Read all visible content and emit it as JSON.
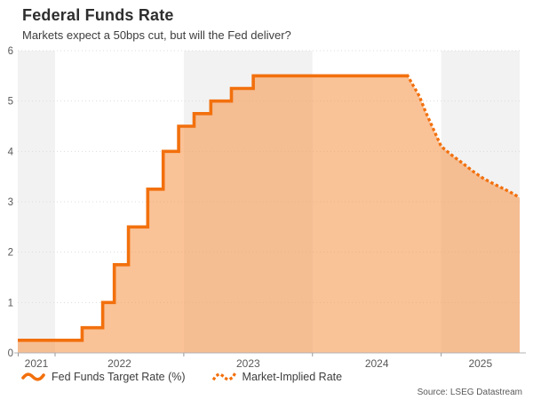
{
  "header": {
    "title": "Federal Funds Rate",
    "subtitle": "Markets expect a 50bps cut, but will the Fed deliver?"
  },
  "source": "Source: LSEG Datastream",
  "legend": [
    {
      "label": "Fed Funds Target Rate (%)",
      "style": "solid"
    },
    {
      "label": "Market-Implied Rate",
      "style": "dotted"
    }
  ],
  "colors": {
    "line": "#f2700d",
    "fill": "rgba(247,153,82,0.6)",
    "band_gray": "#f2f2f2",
    "band_white": "#ffffff",
    "gridline": "#dcdcdc",
    "axis": "#b3b3b3",
    "tick": "#999999",
    "tick_label": "#595959"
  },
  "chart_data": {
    "type": "area",
    "title": "Federal Funds Rate",
    "subtitle": "Markets expect a 50bps cut, but will the Fed deliver?",
    "xlabel": "",
    "ylabel": "",
    "x_domain": [
      2021.71,
      2025.61
    ],
    "ylim": [
      0,
      6
    ],
    "y_ticks": [
      0,
      1,
      2,
      3,
      4,
      5,
      6
    ],
    "x_years": [
      2021,
      2022,
      2023,
      2024,
      2025
    ],
    "grid": "horizontal-dotted",
    "legend_position": "bottom-left",
    "series": [
      {
        "name": "Fed Funds Target Rate (%)",
        "style": "step-solid",
        "points": [
          [
            2021.71,
            0.25
          ],
          [
            2022.21,
            0.5
          ],
          [
            2022.37,
            1.0
          ],
          [
            2022.46,
            1.75
          ],
          [
            2022.57,
            2.5
          ],
          [
            2022.72,
            3.25
          ],
          [
            2022.84,
            4.0
          ],
          [
            2022.96,
            4.5
          ],
          [
            2023.08,
            4.75
          ],
          [
            2023.21,
            5.0
          ],
          [
            2023.37,
            5.25
          ],
          [
            2023.54,
            5.5
          ],
          [
            2024.74,
            5.5
          ]
        ]
      },
      {
        "name": "Market-Implied Rate",
        "style": "dotted",
        "points": [
          [
            2024.74,
            5.5
          ],
          [
            2024.78,
            5.32
          ],
          [
            2024.83,
            5.1
          ],
          [
            2024.88,
            4.78
          ],
          [
            2024.94,
            4.44
          ],
          [
            2025.0,
            4.1
          ],
          [
            2025.08,
            3.93
          ],
          [
            2025.17,
            3.76
          ],
          [
            2025.25,
            3.6
          ],
          [
            2025.33,
            3.46
          ],
          [
            2025.42,
            3.34
          ],
          [
            2025.5,
            3.24
          ],
          [
            2025.56,
            3.16
          ],
          [
            2025.61,
            3.08
          ]
        ]
      }
    ]
  }
}
